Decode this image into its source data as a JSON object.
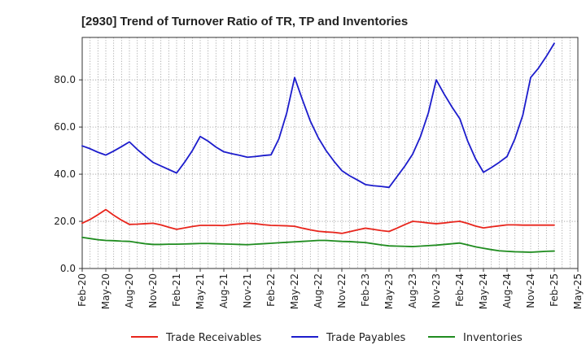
{
  "chart_data": {
    "type": "line",
    "title": "[2930]  Trend of Turnover Ratio of TR, TP and Inventories",
    "xlabel": "",
    "ylabel": "",
    "ylim": [
      0,
      98
    ],
    "y_ticks": [
      0,
      20,
      40,
      60,
      80
    ],
    "y_tick_labels": [
      "0.0",
      "20.0",
      "40.0",
      "60.0",
      "80.0"
    ],
    "x_tick_labels": [
      "Feb-20",
      "May-20",
      "Aug-20",
      "Nov-20",
      "Feb-21",
      "May-21",
      "Aug-21",
      "Nov-21",
      "Feb-22",
      "May-22",
      "Aug-22",
      "Nov-22",
      "Feb-23",
      "May-23",
      "Aug-23",
      "Nov-23",
      "Feb-24",
      "May-24",
      "Aug-24",
      "Nov-24",
      "Feb-25",
      "May-25"
    ],
    "x": [
      "2020-02",
      "2020-03",
      "2020-04",
      "2020-05",
      "2020-06",
      "2020-07",
      "2020-08",
      "2020-09",
      "2020-10",
      "2020-11",
      "2020-12",
      "2021-01",
      "2021-02",
      "2021-03",
      "2021-04",
      "2021-05",
      "2021-06",
      "2021-07",
      "2021-08",
      "2021-09",
      "2021-10",
      "2021-11",
      "2021-12",
      "2022-01",
      "2022-02",
      "2022-03",
      "2022-04",
      "2022-05",
      "2022-06",
      "2022-07",
      "2022-08",
      "2022-09",
      "2022-10",
      "2022-11",
      "2022-12",
      "2023-01",
      "2023-02",
      "2023-03",
      "2023-04",
      "2023-05",
      "2023-06",
      "2023-07",
      "2023-08",
      "2023-09",
      "2023-10",
      "2023-11",
      "2023-12",
      "2024-01",
      "2024-02",
      "2024-03",
      "2024-04",
      "2024-05",
      "2024-06",
      "2024-07",
      "2024-08",
      "2024-09",
      "2024-10",
      "2024-11",
      "2024-12",
      "2025-01",
      "2025-02"
    ],
    "grid": true,
    "legend_position": "bottom",
    "series": [
      {
        "name": "Trade Receivables",
        "color": "#e8251c",
        "values": [
          19.2,
          20.8,
          22.8,
          25.0,
          22.6,
          20.5,
          18.7,
          18.8,
          19.0,
          19.2,
          18.5,
          17.5,
          16.6,
          17.2,
          17.8,
          18.3,
          18.3,
          18.3,
          18.2,
          18.6,
          18.9,
          19.2,
          19.0,
          18.6,
          18.3,
          18.2,
          18.1,
          17.9,
          17.1,
          16.4,
          15.8,
          15.5,
          15.3,
          14.9,
          15.6,
          16.4,
          17.1,
          16.6,
          16.1,
          15.7,
          17.1,
          18.6,
          20.0,
          19.7,
          19.3,
          19.0,
          19.3,
          19.7,
          20.0,
          19.1,
          18.0,
          17.2,
          17.7,
          18.1,
          18.5,
          18.5,
          18.4,
          18.4,
          18.4,
          18.4,
          18.4
        ]
      },
      {
        "name": "Trade Payables",
        "color": "#1c1ccc",
        "values": [
          52.0,
          50.8,
          49.3,
          48.1,
          49.8,
          51.7,
          53.7,
          50.5,
          47.7,
          45.0,
          43.5,
          42.0,
          40.5,
          45.0,
          50.0,
          56.0,
          54.0,
          51.5,
          49.5,
          48.7,
          48.0,
          47.2,
          47.5,
          47.9,
          48.2,
          55.0,
          66.0,
          81.0,
          71.5,
          62.5,
          55.5,
          50.0,
          45.5,
          41.5,
          39.3,
          37.5,
          35.6,
          35.1,
          34.8,
          34.4,
          38.9,
          43.4,
          48.5,
          56.0,
          66.0,
          80.0,
          74.0,
          68.5,
          63.5,
          54.0,
          46.5,
          40.8,
          42.8,
          45.0,
          47.5,
          55.0,
          65.0,
          81.0,
          85.0,
          90.0,
          95.5
        ]
      },
      {
        "name": "Inventories",
        "color": "#1f8c1f",
        "values": [
          13.2,
          12.7,
          12.2,
          11.9,
          11.8,
          11.6,
          11.5,
          11.0,
          10.5,
          10.2,
          10.2,
          10.3,
          10.3,
          10.4,
          10.5,
          10.6,
          10.6,
          10.5,
          10.4,
          10.3,
          10.2,
          10.1,
          10.3,
          10.5,
          10.7,
          10.9,
          11.1,
          11.3,
          11.5,
          11.7,
          11.9,
          11.9,
          11.7,
          11.5,
          11.4,
          11.2,
          11.0,
          10.5,
          10.0,
          9.6,
          9.5,
          9.4,
          9.3,
          9.5,
          9.7,
          9.9,
          10.2,
          10.5,
          10.8,
          10.0,
          9.2,
          8.6,
          8.0,
          7.5,
          7.3,
          7.1,
          7.0,
          6.9,
          7.1,
          7.3,
          7.4
        ]
      }
    ]
  }
}
